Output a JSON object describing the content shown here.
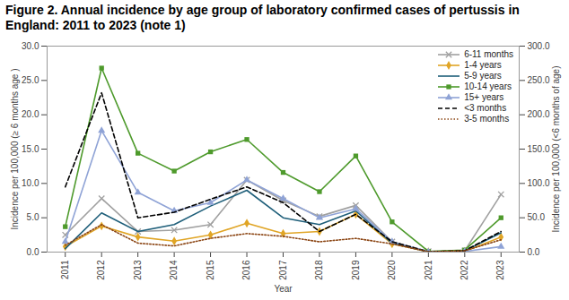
{
  "chart_data": {
    "type": "line",
    "title": "Figure 2. Annual incidence by age group of laboratory confirmed cases of pertussis in England: 2011 to 2023 (note 1)",
    "xlabel": "Year",
    "ylabel": "Incidence per 100,000 (≥ 6 months age )",
    "y2label": "Incidence per 100,000 (<6 months of age)",
    "x": [
      2011,
      2012,
      2013,
      2014,
      2015,
      2016,
      2017,
      2018,
      2019,
      2020,
      2021,
      2022,
      2023
    ],
    "xlim": [
      2010.5,
      2023.5
    ],
    "xticks": [
      2011,
      2012,
      2013,
      2014,
      2015,
      2016,
      2017,
      2018,
      2019,
      2020,
      2021,
      2022,
      2023
    ],
    "ylim": [
      0,
      30
    ],
    "yticks": [
      {
        "value": 0,
        "label": "0.0"
      },
      {
        "value": 5,
        "label": "5.0"
      },
      {
        "value": 10,
        "label": "10.0"
      },
      {
        "value": 15,
        "label": "15.0"
      },
      {
        "value": 20,
        "label": "20.0"
      },
      {
        "value": 25,
        "label": "25.0"
      },
      {
        "value": 30,
        "label": "30.0"
      }
    ],
    "y2lim": [
      0,
      300
    ],
    "y2ticks": [
      {
        "value": 0,
        "label": "0.0"
      },
      {
        "value": 50,
        "label": "50.0"
      },
      {
        "value": 100,
        "label": "100.0"
      },
      {
        "value": 150,
        "label": "150.0"
      },
      {
        "value": 200,
        "label": "200.0"
      },
      {
        "value": 250,
        "label": "250.0"
      },
      {
        "value": 300,
        "label": "300.0"
      }
    ],
    "grid": false,
    "legend": "top-right",
    "series": [
      {
        "name": "6-11 months",
        "color": "#a0a0a0",
        "marker": "times",
        "line_style": "solid",
        "values": [
          2.5,
          7.8,
          3.0,
          3.2,
          4.0,
          10.5,
          7.5,
          5.2,
          6.8,
          1.5,
          0.1,
          0.2,
          8.4
        ]
      },
      {
        "name": "1-4 years",
        "color": "#e0a526",
        "marker": "diamond",
        "line_style": "solid",
        "values": [
          0.8,
          3.8,
          2.2,
          1.6,
          2.5,
          4.2,
          2.7,
          3.0,
          5.5,
          1.2,
          0.05,
          0.1,
          2.2
        ]
      },
      {
        "name": "5-9 years",
        "color": "#1f5f7a",
        "marker": "none",
        "line_style": "solid",
        "values": [
          0.5,
          5.7,
          3.0,
          4.0,
          6.7,
          9.0,
          5.0,
          4.0,
          6.0,
          1.3,
          0.05,
          0.2,
          2.8
        ]
      },
      {
        "name": "10-14 years",
        "color": "#4e9a2c",
        "marker": "square",
        "line_style": "solid",
        "values": [
          3.7,
          26.8,
          14.4,
          11.8,
          14.6,
          16.4,
          11.6,
          8.8,
          14.0,
          4.4,
          0.1,
          0.3,
          5.0
        ]
      },
      {
        "name": "15+ years",
        "color": "#8fa3d6",
        "marker": "triangle",
        "line_style": "solid",
        "values": [
          1.5,
          17.7,
          8.7,
          6.0,
          7.2,
          10.5,
          7.8,
          5.0,
          6.3,
          1.5,
          0.05,
          0.1,
          0.8
        ]
      },
      {
        "name": "<3 months",
        "color": "#000000",
        "marker": "none",
        "line_style": "dashed",
        "axis": "y2",
        "values": [
          95,
          232,
          50,
          58,
          77,
          95,
          72,
          30,
          55,
          15,
          0.5,
          2,
          30
        ]
      },
      {
        "name": "3-5 months",
        "color": "#8b4513",
        "marker": "none",
        "line_style": "dotted",
        "axis": "y2",
        "values": [
          10,
          40,
          13,
          9,
          20,
          27,
          23,
          15,
          20,
          12,
          0.5,
          2,
          18
        ]
      }
    ]
  }
}
